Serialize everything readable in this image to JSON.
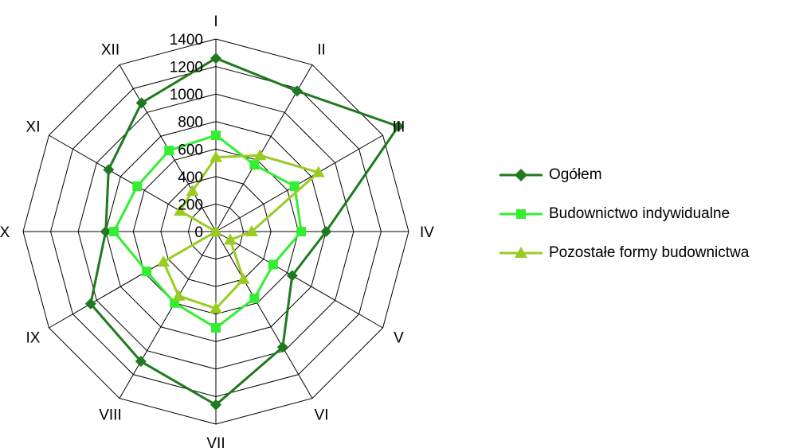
{
  "chart_data": {
    "type": "radar",
    "title": "",
    "categories": [
      "I",
      "II",
      "III",
      "IV",
      "V",
      "VI",
      "VII",
      "VIII",
      "IX",
      "X",
      "XI",
      "XII"
    ],
    "r_ticks": [
      "0",
      "200",
      "400",
      "600",
      "800",
      "1000",
      "1200",
      "1400"
    ],
    "rlim": [
      0,
      1400
    ],
    "grid": true,
    "legend_position": "right",
    "series": [
      {
        "name": "Ogółem",
        "values": [
          1260,
          1180,
          1530,
          800,
          640,
          970,
          1260,
          1090,
          1050,
          800,
          900,
          1080
        ],
        "color": "#1f7a1f",
        "marker": "diamond"
      },
      {
        "name": "Budownictwo indywidualne",
        "values": [
          700,
          560,
          660,
          620,
          480,
          560,
          700,
          600,
          580,
          740,
          660,
          680
        ],
        "color": "#33ee33",
        "marker": "square"
      },
      {
        "name": "Pozostałe formy budownictwa",
        "values": [
          540,
          640,
          860,
          260,
          120,
          400,
          560,
          540,
          440,
          0,
          300,
          340
        ],
        "color": "#99cc22",
        "marker": "triangle"
      }
    ]
  }
}
